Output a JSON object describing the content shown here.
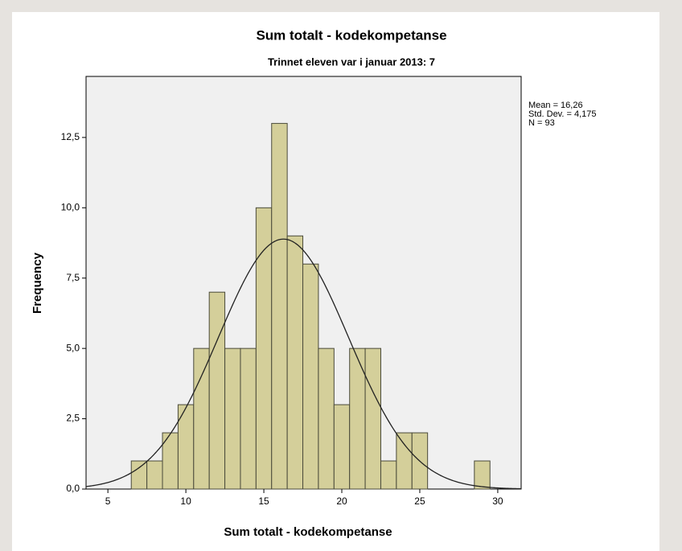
{
  "chart_data": {
    "type": "histogram",
    "title": "Sum totalt - kodekompetanse",
    "subtitle": "Trinnet eleven var i januar 2013: 7",
    "x_label": "Sum totalt - kodekompetanse",
    "y_label": "Frequency",
    "bins": [
      6.5,
      7.5,
      8.5,
      9.5,
      10.5,
      11.5,
      12.5,
      13.5,
      14.5,
      15.5,
      16.5,
      17.5,
      18.5,
      19.5,
      20.5,
      21.5,
      22.5,
      23.5,
      24.5,
      25.5,
      26.5,
      27.5,
      28.5,
      29.5
    ],
    "values": [
      1,
      1,
      2,
      3,
      5,
      7,
      5,
      5,
      10,
      13,
      9,
      8,
      5,
      3,
      5,
      5,
      1,
      2,
      2,
      0,
      0,
      0,
      1
    ],
    "color": "#d4cf9a",
    "xlim": [
      3.6,
      31.5
    ],
    "xticks": [
      5,
      10,
      15,
      20,
      25,
      30
    ],
    "ylim": [
      0,
      14.67
    ],
    "yticks": [
      {
        "value": 0,
        "label": "0,0"
      },
      {
        "value": 2.5,
        "label": "2,5"
      },
      {
        "value": 5,
        "label": "5,0"
      },
      {
        "value": 7.5,
        "label": "7,5"
      },
      {
        "value": 10,
        "label": "10,0"
      },
      {
        "value": 12.5,
        "label": "12,5"
      }
    ],
    "stats": [
      {
        "label": "Mean = 16,26",
        "value": 16.26
      },
      {
        "label": "Std. Dev. = 4,175",
        "value": 4.175
      },
      {
        "label": "N = 93",
        "value": 93
      }
    ]
  }
}
